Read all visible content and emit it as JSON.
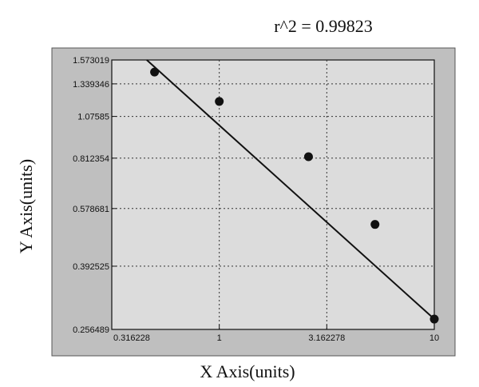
{
  "chart_data": {
    "type": "scatter",
    "title": "r^2  =  0.99823",
    "xlabel": "X Axis(units)",
    "ylabel": "Y Axis(units)",
    "x_scale": "log",
    "y_scale": "log",
    "xlim": [
      0.316228,
      10
    ],
    "ylim": [
      0.256489,
      1.573019
    ],
    "x_ticks": [
      "0.316228",
      "1",
      "3.162278",
      "10"
    ],
    "y_ticks": [
      "0.256489",
      "0.392525",
      "0.578681",
      "0.812354",
      "1.07585",
      "1.339346",
      "1.573019"
    ],
    "grid": true,
    "series": [
      {
        "points": [
          {
            "x": 0.5,
            "y": 1.45
          },
          {
            "x": 1,
            "y": 1.19
          },
          {
            "x": 2.6,
            "y": 0.82
          },
          {
            "x": 5.3,
            "y": 0.52
          },
          {
            "x": 10,
            "y": 0.275
          }
        ]
      }
    ],
    "fit_line": {
      "x": [
        0.46,
        10
      ],
      "y": [
        1.573019,
        0.275
      ]
    },
    "colors": {
      "background": "#dcdcdc",
      "frame": "#bfbfbf",
      "line": "#111111",
      "grid": "#333333",
      "marker": "#111111"
    }
  }
}
